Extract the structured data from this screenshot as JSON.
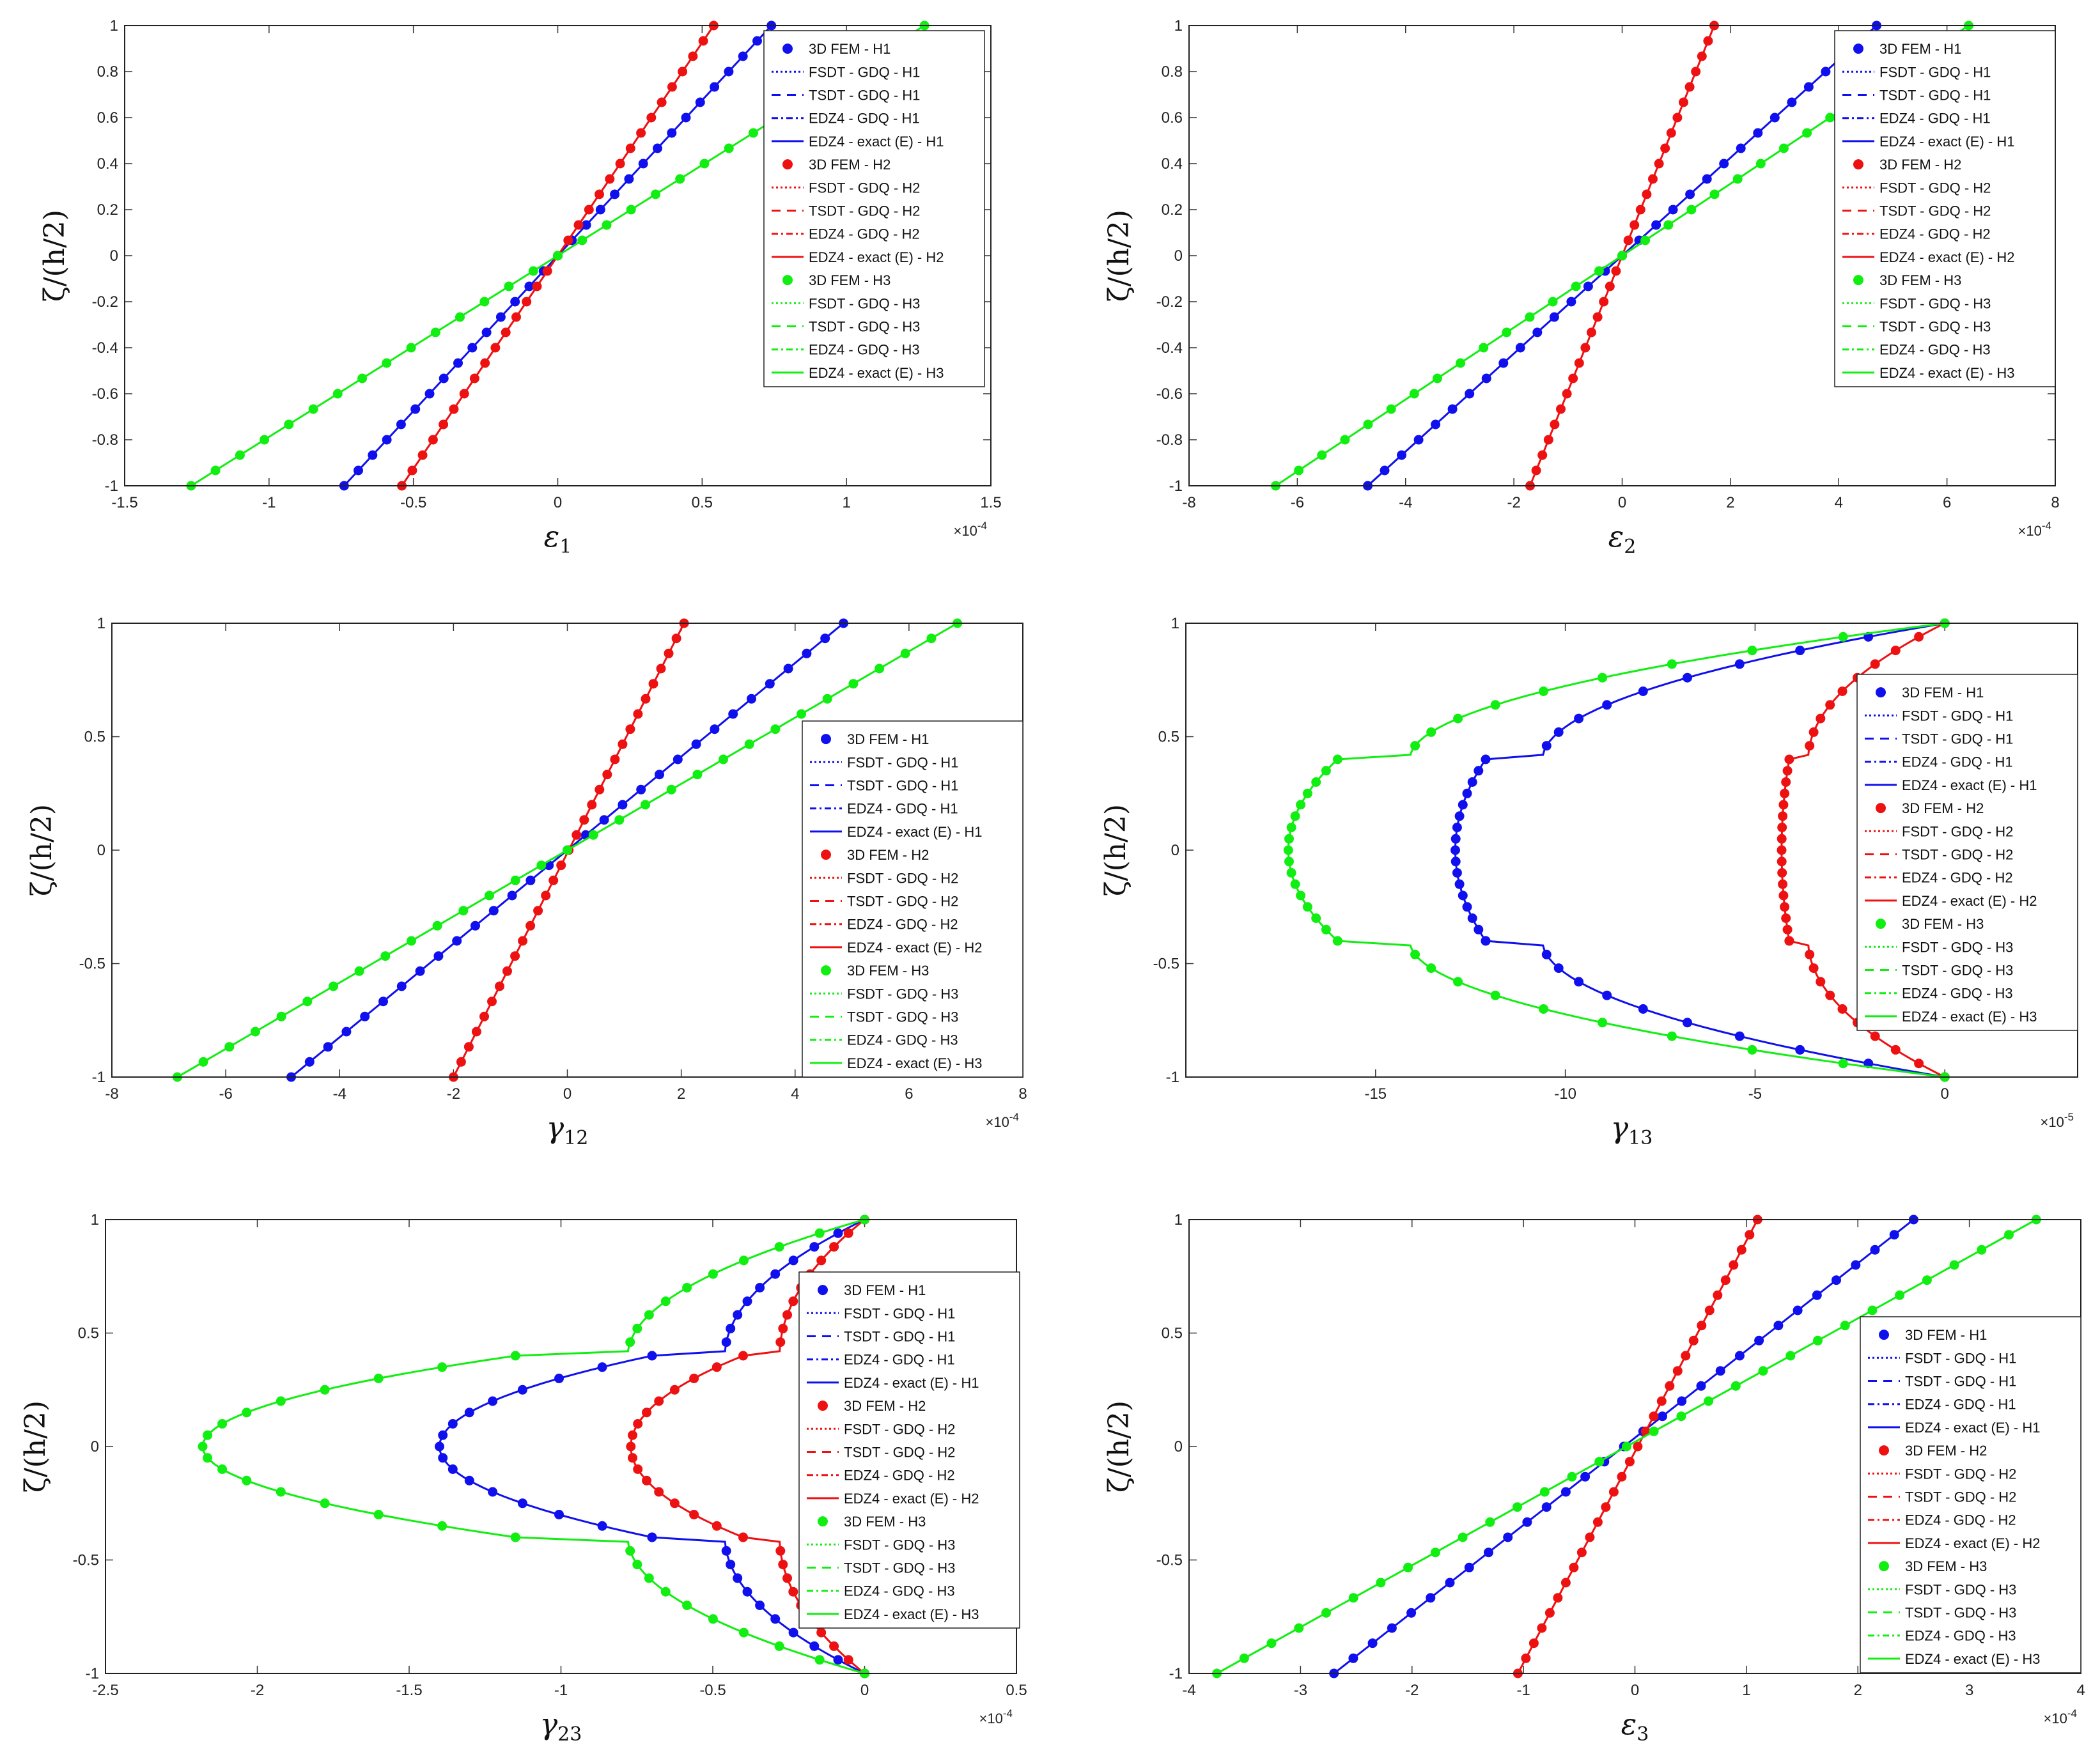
{
  "figure": {
    "background": "#ffffff"
  },
  "series_styles": {
    "H1": "#1010ee",
    "H2": "#ee1111",
    "H3": "#11ee11"
  },
  "chart_data": [
    {
      "id": "eps1",
      "type": "line",
      "title": "",
      "xlabel_symbol": "ε",
      "xlabel_sub": "1",
      "ylabel": "ζ/(h/2)",
      "xlim": [
        -1.5,
        1.5
      ],
      "ylim": [
        -1,
        1
      ],
      "xticks": [
        -1.5,
        -1,
        -0.5,
        0,
        0.5,
        1,
        1.5
      ],
      "xtick_labels": [
        "-1.5",
        "-1",
        "-0.5",
        "0",
        "0.5",
        "1",
        "1.5"
      ],
      "yticks": [
        -1,
        -0.8,
        -0.6,
        -0.4,
        -0.2,
        0,
        0.2,
        0.4,
        0.6,
        0.8,
        1
      ],
      "ytick_labels": [
        "-1",
        "-0.8",
        "-0.6",
        "-0.4",
        "-0.2",
        "0",
        "0.2",
        "0.4",
        "0.6",
        "0.8",
        "1"
      ],
      "exponent": "×10",
      "exponent_power": "-4",
      "legend_position": "top-right",
      "shape": "linear",
      "series": [
        {
          "name": "H1",
          "kind": "linear",
          "a": -0.74,
          "b": 0.74
        },
        {
          "name": "H2",
          "kind": "linear",
          "a": -0.54,
          "b": 0.54
        },
        {
          "name": "H3",
          "kind": "linear",
          "a": -1.27,
          "b": 1.27
        }
      ]
    },
    {
      "id": "eps2",
      "type": "line",
      "title": "",
      "xlabel_symbol": "ε",
      "xlabel_sub": "2",
      "ylabel": "ζ/(h/2)",
      "xlim": [
        -8,
        8
      ],
      "ylim": [
        -1,
        1
      ],
      "xticks": [
        -8,
        -6,
        -4,
        -2,
        0,
        2,
        4,
        6,
        8
      ],
      "xtick_labels": [
        "-8",
        "-6",
        "-4",
        "-2",
        "0",
        "2",
        "4",
        "6",
        "8"
      ],
      "yticks": [
        -1,
        -0.8,
        -0.6,
        -0.4,
        -0.2,
        0,
        0.2,
        0.4,
        0.6,
        0.8,
        1
      ],
      "ytick_labels": [
        "-1",
        "-0.8",
        "-0.6",
        "-0.4",
        "-0.2",
        "0",
        "0.2",
        "0.4",
        "0.6",
        "0.8",
        "1"
      ],
      "exponent": "×10",
      "exponent_power": "-4",
      "legend_position": "top-right",
      "shape": "linear",
      "series": [
        {
          "name": "H1",
          "kind": "linear",
          "a": -4.7,
          "b": 4.7
        },
        {
          "name": "H2",
          "kind": "linear",
          "a": -1.7,
          "b": 1.7
        },
        {
          "name": "H3",
          "kind": "linear",
          "a": -6.4,
          "b": 6.4
        }
      ]
    },
    {
      "id": "gamma12",
      "type": "line",
      "title": "",
      "xlabel_symbol": "γ",
      "xlabel_sub": "12",
      "ylabel": "ζ/(h/2)",
      "xlim": [
        -8,
        8
      ],
      "ylim": [
        -1,
        1
      ],
      "xticks": [
        -8,
        -6,
        -4,
        -2,
        0,
        2,
        4,
        6,
        8
      ],
      "xtick_labels": [
        "-8",
        "-6",
        "-4",
        "-2",
        "0",
        "2",
        "4",
        "6",
        "8"
      ],
      "yticks": [
        -1,
        -0.5,
        0,
        0.5,
        1
      ],
      "ytick_labels": [
        "-1",
        "-0.5",
        "0",
        "0.5",
        "1"
      ],
      "exponent": "×10",
      "exponent_power": "-4",
      "legend_position": "center-right",
      "shape": "linear",
      "series": [
        {
          "name": "H1",
          "kind": "linear",
          "a": -4.85,
          "b": 4.85
        },
        {
          "name": "H2",
          "kind": "linear",
          "a": -2.0,
          "b": 2.05
        },
        {
          "name": "H3",
          "kind": "linear",
          "a": -6.85,
          "b": 6.85
        }
      ]
    },
    {
      "id": "gamma13",
      "type": "line",
      "title": "",
      "xlabel_symbol": "γ",
      "xlabel_sub": "13",
      "ylabel": "ζ/(h/2)",
      "xlim": [
        -20,
        3.5
      ],
      "ylim": [
        -1,
        1
      ],
      "xticks": [
        -15,
        -10,
        -5,
        0
      ],
      "xtick_labels": [
        "-15",
        "-10",
        "-5",
        "0"
      ],
      "yticks": [
        -1,
        -0.5,
        0,
        0.5,
        1
      ],
      "ytick_labels": [
        "-1",
        "-0.5",
        "0",
        "0.5",
        "1"
      ],
      "exponent": "×10",
      "exponent_power": "-5",
      "legend_position": "right",
      "shape": "shear",
      "series": [
        {
          "name": "H1",
          "kind": "shear",
          "core_peak": -12.9,
          "core_edge": -12.1,
          "face_edge": -10.6,
          "jump_sign": -1
        },
        {
          "name": "H2",
          "kind": "shear",
          "core_peak": -4.3,
          "core_edge": -4.1,
          "face_edge": -3.6,
          "jump_sign": -1
        },
        {
          "name": "H3",
          "kind": "shear",
          "core_peak": -17.3,
          "core_edge": -16.0,
          "face_edge": -14.1,
          "jump_sign": -1
        }
      ]
    },
    {
      "id": "gamma23",
      "type": "line",
      "title": "",
      "xlabel_symbol": "γ",
      "xlabel_sub": "23",
      "ylabel": "ζ/(h/2)",
      "xlim": [
        -2.5,
        0.5
      ],
      "ylim": [
        -1,
        1
      ],
      "xticks": [
        -2.5,
        -2,
        -1.5,
        -1,
        -0.5,
        0,
        0.5
      ],
      "xtick_labels": [
        "-2.5",
        "-2",
        "-1.5",
        "-1",
        "-0.5",
        "0",
        "0.5"
      ],
      "yticks": [
        -1,
        -0.5,
        0,
        0.5,
        1
      ],
      "ytick_labels": [
        "-1",
        "-0.5",
        "0",
        "0.5",
        "1"
      ],
      "exponent": "×10",
      "exponent_power": "-4",
      "legend_position": "right",
      "shape": "shear",
      "series": [
        {
          "name": "H1",
          "kind": "shear",
          "core_peak": -1.4,
          "core_edge": -0.7,
          "face_edge": -0.46,
          "jump_sign": 1
        },
        {
          "name": "H2",
          "kind": "shear",
          "core_peak": -0.77,
          "core_edge": -0.4,
          "face_edge": -0.28,
          "jump_sign": 1
        },
        {
          "name": "H3",
          "kind": "shear",
          "core_peak": -2.18,
          "core_edge": -1.15,
          "face_edge": -0.78,
          "jump_sign": 1
        }
      ]
    },
    {
      "id": "eps3",
      "type": "line",
      "title": "",
      "xlabel_symbol": "ε",
      "xlabel_sub": "3",
      "ylabel": "ζ/(h/2)",
      "xlim": [
        -4,
        4
      ],
      "ylim": [
        -1,
        1
      ],
      "xticks": [
        -4,
        -3,
        -2,
        -1,
        0,
        1,
        2,
        3,
        4
      ],
      "xtick_labels": [
        "-4",
        "-3",
        "-2",
        "-1",
        "0",
        "1",
        "2",
        "3",
        "4"
      ],
      "yticks": [
        -1,
        -0.5,
        0,
        0.5,
        1
      ],
      "ytick_labels": [
        "-1",
        "-0.5",
        "0",
        "0.5",
        "1"
      ],
      "exponent": "×10",
      "exponent_power": "-4",
      "legend_position": "right",
      "shape": "linear",
      "series": [
        {
          "name": "H1",
          "kind": "linear",
          "a": -2.7,
          "b": 2.5
        },
        {
          "name": "H2",
          "kind": "linear",
          "a": -1.05,
          "b": 1.1
        },
        {
          "name": "H3",
          "kind": "linear",
          "a": -3.75,
          "b": 3.6
        }
      ]
    }
  ],
  "legend": {
    "entries": [
      {
        "label": "3D FEM - H1",
        "series": "H1",
        "style": "marker"
      },
      {
        "label": "FSDT - GDQ - H1",
        "series": "H1",
        "style": "dotted"
      },
      {
        "label": "TSDT - GDQ - H1",
        "series": "H1",
        "style": "longdash"
      },
      {
        "label": "EDZ4 - GDQ - H1",
        "series": "H1",
        "style": "dashdot"
      },
      {
        "label": "EDZ4 - exact (E) - H1",
        "series": "H1",
        "style": "solid"
      },
      {
        "label": "3D FEM - H2",
        "series": "H2",
        "style": "marker"
      },
      {
        "label": "FSDT - GDQ - H2",
        "series": "H2",
        "style": "dotted"
      },
      {
        "label": "TSDT - GDQ - H2",
        "series": "H2",
        "style": "longdash"
      },
      {
        "label": "EDZ4 - GDQ - H2",
        "series": "H2",
        "style": "dashdot"
      },
      {
        "label": "EDZ4 - exact (E) - H2",
        "series": "H2",
        "style": "solid"
      },
      {
        "label": "3D FEM - H3",
        "series": "H3",
        "style": "marker"
      },
      {
        "label": "FSDT - GDQ - H3",
        "series": "H3",
        "style": "dotted"
      },
      {
        "label": "TSDT - GDQ - H3",
        "series": "H3",
        "style": "longdash"
      },
      {
        "label": "EDZ4 - GDQ - H3",
        "series": "H3",
        "style": "dashdot"
      },
      {
        "label": "EDZ4 - exact (E) - H3",
        "series": "H3",
        "style": "solid"
      }
    ]
  }
}
